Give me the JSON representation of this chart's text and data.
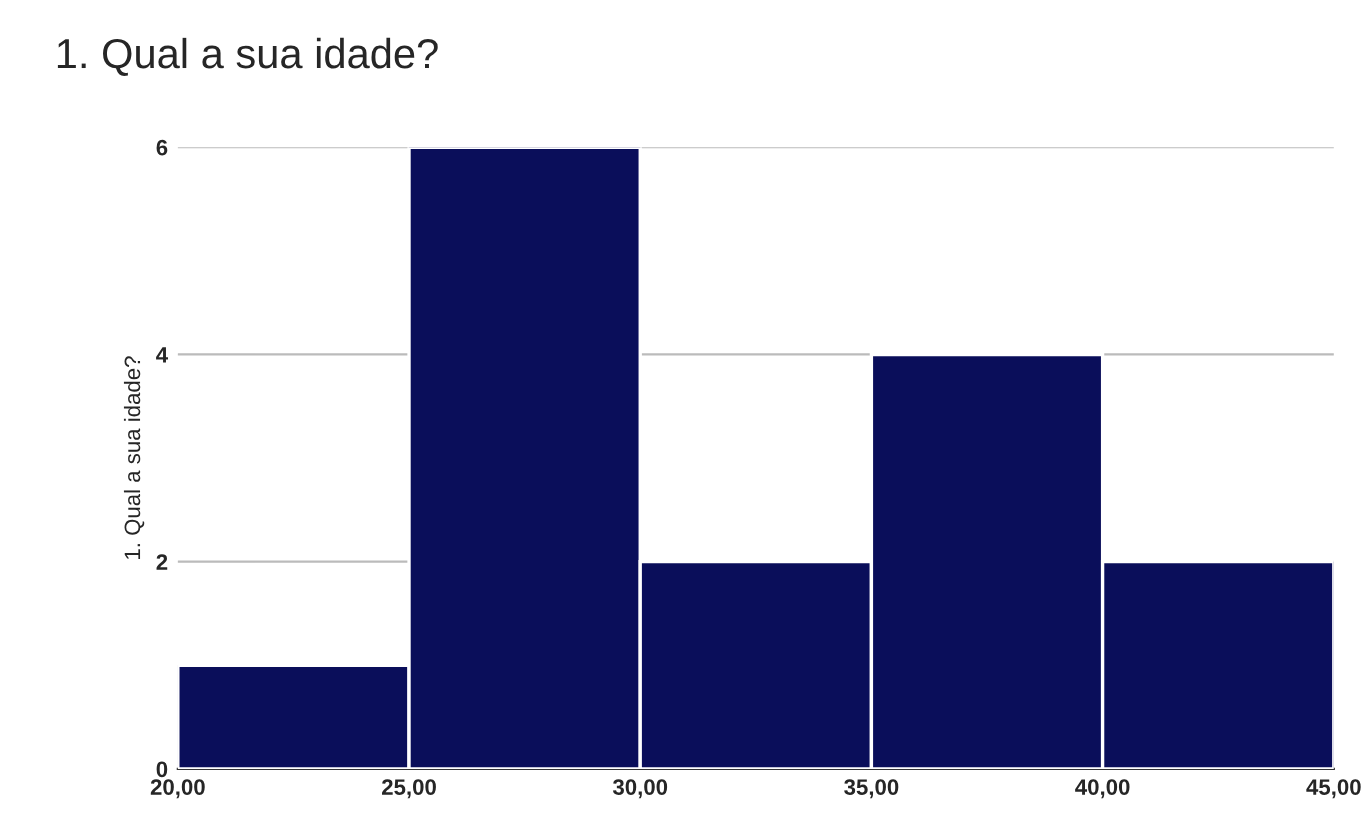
{
  "chart_data": {
    "type": "histogram",
    "title": "1. Qual a sua idade?",
    "ylabel": "1. Qual a sua idade?",
    "bins": [
      20,
      25,
      30,
      35,
      40,
      45
    ],
    "values": [
      1,
      6,
      2,
      4,
      2
    ],
    "color": "#0a0e5a",
    "xlim": [
      20,
      45
    ],
    "xticks": [
      {
        "value": 20,
        "label": "20,00"
      },
      {
        "value": 25,
        "label": "25,00"
      },
      {
        "value": 30,
        "label": "30,00"
      },
      {
        "value": 35,
        "label": "35,00"
      },
      {
        "value": 40,
        "label": "40,00"
      },
      {
        "value": 45,
        "label": "45,00"
      }
    ],
    "ylim": [
      0,
      6
    ],
    "yticks": [
      0,
      2,
      4,
      6
    ],
    "grid": "y"
  }
}
